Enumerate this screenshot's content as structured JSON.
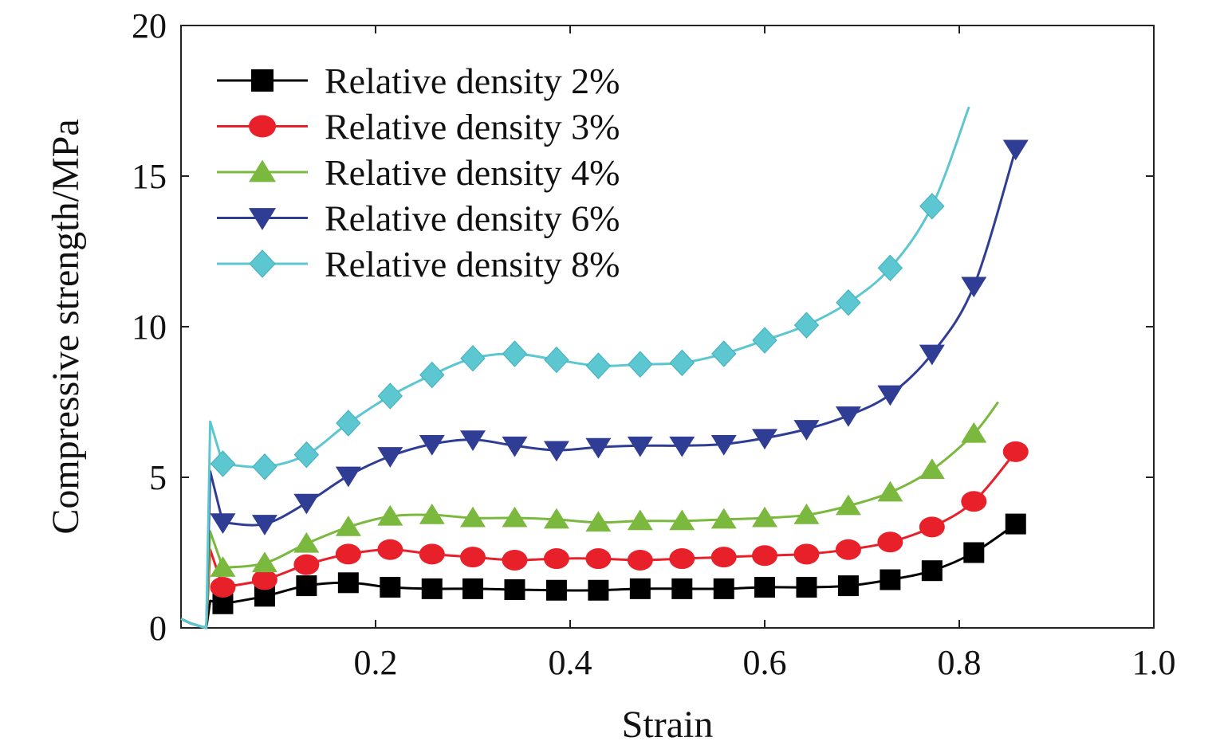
{
  "chart_data": {
    "type": "line",
    "title": "",
    "xlabel": "Strain",
    "ylabel": "Compressive strength/MPa",
    "xlim": [
      0,
      1.0
    ],
    "ylim": [
      0,
      20
    ],
    "xticks": [
      0.2,
      0.4,
      0.6,
      0.8,
      1.0
    ],
    "xtick_labels": [
      "0.2",
      "0.4",
      "0.6",
      "0.8",
      "1.0"
    ],
    "yticks": [
      0,
      5,
      10,
      15,
      20
    ],
    "ytick_labels": [
      "0",
      "5",
      "10",
      "15",
      "20"
    ],
    "grid": false,
    "legend_position": "top-left",
    "series": [
      {
        "name": "Relative density 2%",
        "color": "#000000",
        "marker": "square",
        "initial": [
          [
            0.0,
            0.3
          ],
          [
            0.01,
            0.15
          ],
          [
            0.02,
            0.05
          ],
          [
            0.026,
            0.0
          ],
          [
            0.03,
            0.9
          ]
        ],
        "x": [
          0.043,
          0.086,
          0.129,
          0.172,
          0.215,
          0.258,
          0.3,
          0.343,
          0.386,
          0.429,
          0.472,
          0.515,
          0.558,
          0.6,
          0.643,
          0.686,
          0.729,
          0.772,
          0.815,
          0.858
        ],
        "y": [
          0.8,
          1.05,
          1.4,
          1.5,
          1.35,
          1.3,
          1.3,
          1.27,
          1.25,
          1.25,
          1.3,
          1.3,
          1.3,
          1.35,
          1.35,
          1.4,
          1.6,
          1.9,
          2.5,
          3.45
        ]
      },
      {
        "name": "Relative density 3%",
        "color": "#e8202a",
        "marker": "circle",
        "initial": [
          [
            0.0,
            0.3
          ],
          [
            0.01,
            0.15
          ],
          [
            0.02,
            0.05
          ],
          [
            0.026,
            0.0
          ],
          [
            0.03,
            2.6
          ]
        ],
        "x": [
          0.043,
          0.086,
          0.129,
          0.172,
          0.215,
          0.258,
          0.3,
          0.343,
          0.386,
          0.429,
          0.472,
          0.515,
          0.558,
          0.6,
          0.643,
          0.686,
          0.729,
          0.772,
          0.815,
          0.858
        ],
        "y": [
          1.35,
          1.6,
          2.1,
          2.45,
          2.6,
          2.45,
          2.35,
          2.25,
          2.3,
          2.3,
          2.25,
          2.3,
          2.35,
          2.4,
          2.45,
          2.6,
          2.85,
          3.35,
          4.2,
          5.85
        ]
      },
      {
        "name": "Relative density 4%",
        "color": "#7ab83e",
        "marker": "triangle-up",
        "initial": [
          [
            0.0,
            0.3
          ],
          [
            0.01,
            0.15
          ],
          [
            0.02,
            0.05
          ],
          [
            0.026,
            0.0
          ],
          [
            0.03,
            3.2
          ]
        ],
        "x": [
          0.043,
          0.086,
          0.129,
          0.172,
          0.215,
          0.258,
          0.3,
          0.343,
          0.386,
          0.429,
          0.472,
          0.515,
          0.558,
          0.6,
          0.643,
          0.686,
          0.729,
          0.772,
          0.815
        ],
        "y": [
          2.0,
          2.15,
          2.8,
          3.35,
          3.7,
          3.75,
          3.65,
          3.65,
          3.6,
          3.5,
          3.55,
          3.55,
          3.6,
          3.65,
          3.75,
          4.05,
          4.5,
          5.25,
          6.45
        ],
        "tail": [
          [
            0.84,
            7.5
          ]
        ]
      },
      {
        "name": "Relative density 6%",
        "color": "#2f3d95",
        "marker": "triangle-down",
        "initial": [
          [
            0.0,
            0.3
          ],
          [
            0.01,
            0.15
          ],
          [
            0.02,
            0.05
          ],
          [
            0.026,
            0.0
          ],
          [
            0.03,
            5.2
          ]
        ],
        "x": [
          0.043,
          0.086,
          0.129,
          0.172,
          0.215,
          0.258,
          0.3,
          0.343,
          0.386,
          0.429,
          0.472,
          0.515,
          0.558,
          0.6,
          0.643,
          0.686,
          0.729,
          0.772,
          0.815,
          0.858
        ],
        "y": [
          3.5,
          3.45,
          4.15,
          5.05,
          5.7,
          6.1,
          6.25,
          6.05,
          5.9,
          6.0,
          6.05,
          6.05,
          6.1,
          6.3,
          6.6,
          7.05,
          7.75,
          9.1,
          11.35,
          15.9
        ]
      },
      {
        "name": "Relative density 8%",
        "color": "#5cc7d1",
        "marker": "diamond",
        "initial": [
          [
            0.0,
            0.3
          ],
          [
            0.01,
            0.15
          ],
          [
            0.02,
            0.05
          ],
          [
            0.026,
            0.0
          ],
          [
            0.03,
            6.85
          ]
        ],
        "x": [
          0.043,
          0.086,
          0.129,
          0.172,
          0.215,
          0.258,
          0.3,
          0.343,
          0.386,
          0.429,
          0.472,
          0.515,
          0.558,
          0.6,
          0.643,
          0.686,
          0.729,
          0.772
        ],
        "y": [
          5.45,
          5.35,
          5.75,
          6.8,
          7.7,
          8.4,
          8.95,
          9.1,
          8.9,
          8.7,
          8.75,
          8.8,
          9.1,
          9.55,
          10.05,
          10.8,
          11.95,
          14.0
        ],
        "tail": [
          [
            0.81,
            17.3
          ]
        ]
      }
    ]
  }
}
